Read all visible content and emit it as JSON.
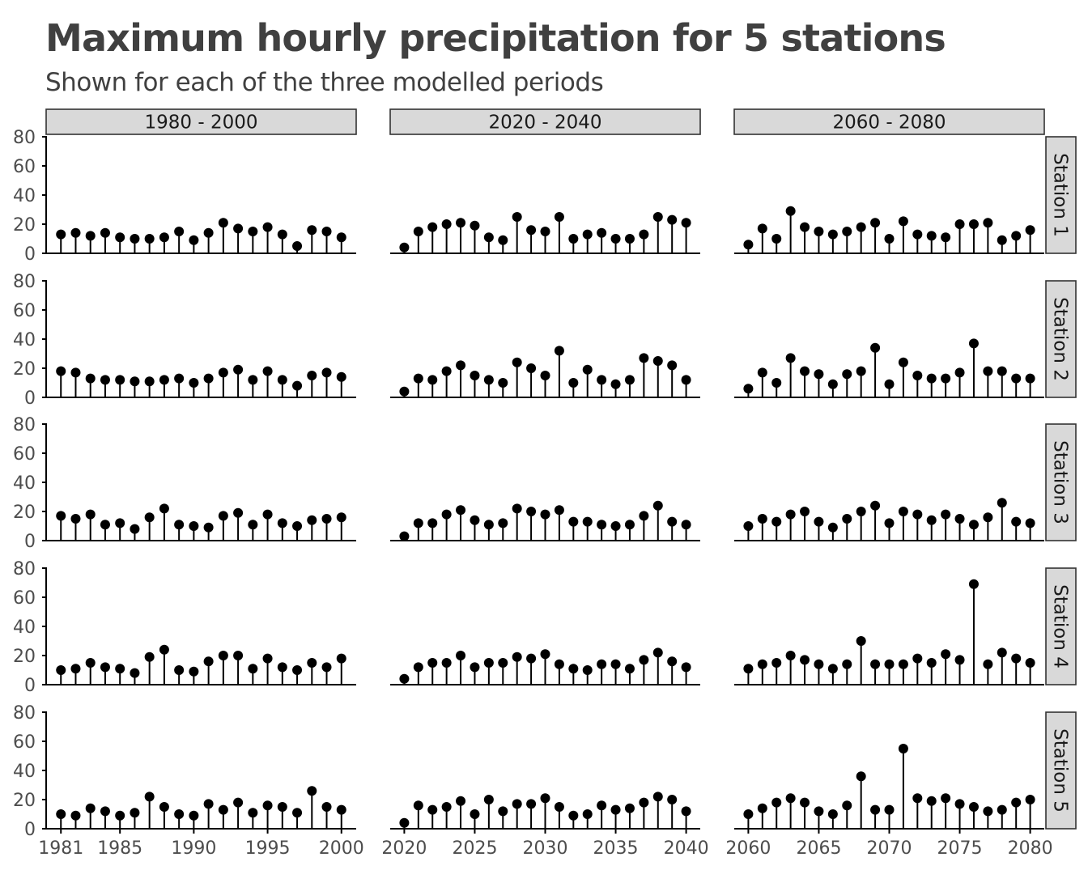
{
  "chart_data": {
    "type": "lollipop",
    "title": "Maximum hourly precipitation for 5 stations",
    "subtitle": "Shown for each of the three modelled periods",
    "ylim": [
      0,
      80
    ],
    "y_ticks": [
      0,
      20,
      40,
      60,
      80
    ],
    "grid": false,
    "periods": [
      {
        "label": "1980 - 2000",
        "xlim": [
          1980,
          2001
        ],
        "x_ticks": [
          1981,
          1985,
          1990,
          1995,
          2000
        ],
        "years": [
          1981,
          2000
        ]
      },
      {
        "label": "2020 - 2040",
        "xlim": [
          2019,
          2041
        ],
        "x_ticks": [
          2020,
          2025,
          2030,
          2035,
          2040
        ],
        "years": [
          2020,
          2040
        ]
      },
      {
        "label": "2060 - 2080",
        "xlim": [
          2059,
          2081
        ],
        "x_ticks": [
          2060,
          2065,
          2070,
          2075,
          2080
        ],
        "years": [
          2060,
          2080
        ]
      }
    ],
    "stations": [
      {
        "label": "Station 1",
        "values": [
          [
            13,
            14,
            12,
            14,
            11,
            10,
            10,
            11,
            15,
            9,
            14,
            21,
            17,
            15,
            18,
            13,
            5,
            16,
            15,
            11
          ],
          [
            4,
            15,
            18,
            20,
            21,
            19,
            11,
            9,
            25,
            16,
            15,
            25,
            10,
            13,
            14,
            10,
            10,
            13,
            25,
            23,
            21
          ],
          [
            6,
            17,
            10,
            29,
            18,
            15,
            13,
            15,
            18,
            21,
            10,
            22,
            13,
            12,
            11,
            20,
            20,
            21,
            9,
            12,
            16
          ]
        ]
      },
      {
        "label": "Station 2",
        "values": [
          [
            18,
            17,
            13,
            12,
            12,
            11,
            11,
            12,
            13,
            10,
            13,
            17,
            19,
            12,
            18,
            12,
            8,
            15,
            17,
            14
          ],
          [
            4,
            13,
            12,
            18,
            22,
            15,
            12,
            10,
            24,
            20,
            15,
            32,
            10,
            19,
            12,
            9,
            12,
            27,
            25,
            22,
            12
          ],
          [
            6,
            17,
            10,
            27,
            18,
            16,
            9,
            16,
            18,
            34,
            9,
            24,
            15,
            13,
            13,
            17,
            37,
            18,
            18,
            13,
            13
          ]
        ]
      },
      {
        "label": "Station 3",
        "values": [
          [
            17,
            15,
            18,
            11,
            12,
            8,
            16,
            22,
            11,
            10,
            9,
            17,
            19,
            11,
            18,
            12,
            10,
            14,
            15,
            16
          ],
          [
            3,
            12,
            12,
            18,
            21,
            14,
            11,
            12,
            22,
            20,
            18,
            21,
            13,
            13,
            11,
            10,
            11,
            17,
            24,
            13,
            11
          ],
          [
            10,
            15,
            13,
            18,
            20,
            13,
            9,
            15,
            20,
            24,
            12,
            20,
            18,
            14,
            18,
            15,
            11,
            16,
            26,
            13,
            12
          ]
        ]
      },
      {
        "label": "Station 4",
        "values": [
          [
            10,
            11,
            15,
            12,
            11,
            8,
            19,
            24,
            10,
            9,
            16,
            20,
            20,
            11,
            18,
            12,
            10,
            15,
            12,
            18
          ],
          [
            4,
            12,
            15,
            15,
            20,
            12,
            15,
            15,
            19,
            18,
            21,
            14,
            11,
            10,
            14,
            14,
            11,
            17,
            22,
            16,
            12
          ],
          [
            11,
            14,
            15,
            20,
            17,
            14,
            11,
            14,
            30,
            14,
            14,
            14,
            18,
            15,
            21,
            17,
            69,
            14,
            22,
            18,
            15
          ]
        ]
      },
      {
        "label": "Station 5",
        "values": [
          [
            10,
            9,
            14,
            12,
            9,
            11,
            22,
            15,
            10,
            9,
            17,
            13,
            18,
            11,
            16,
            15,
            11,
            26,
            15,
            13
          ],
          [
            4,
            16,
            13,
            15,
            19,
            10,
            20,
            12,
            17,
            17,
            21,
            15,
            9,
            10,
            16,
            13,
            14,
            18,
            22,
            20,
            12
          ],
          [
            10,
            14,
            18,
            21,
            18,
            12,
            10,
            16,
            36,
            13,
            13,
            55,
            21,
            19,
            21,
            17,
            15,
            12,
            13,
            18,
            20
          ]
        ]
      }
    ]
  }
}
